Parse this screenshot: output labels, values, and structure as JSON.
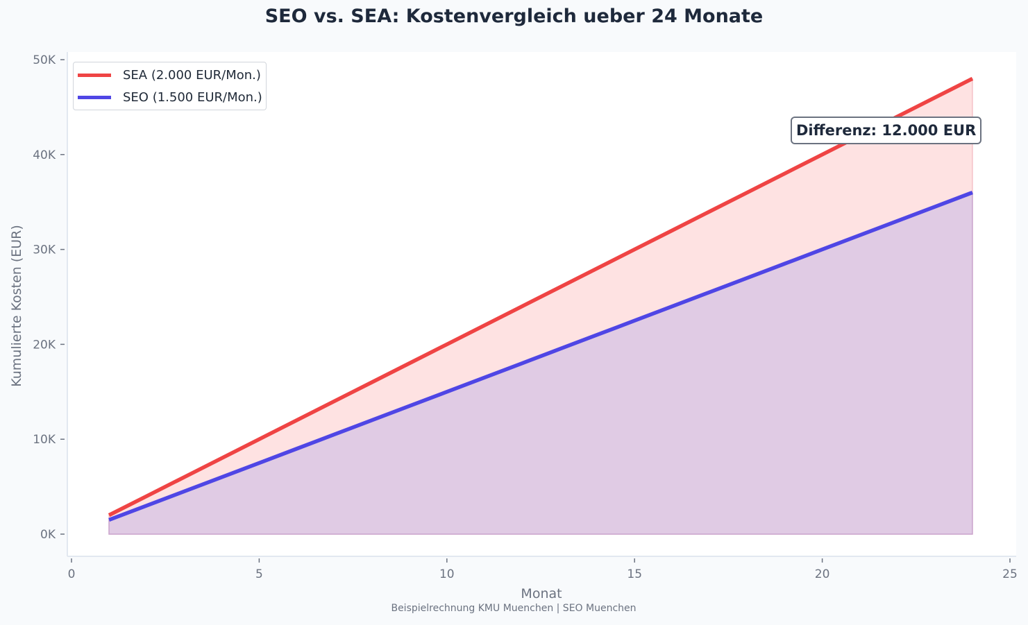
{
  "chart_data": {
    "type": "area",
    "title": "SEO vs. SEA: Kostenvergleich ueber 24 Monate",
    "xlabel": "Monat",
    "ylabel": "Kumulierte Kosten (EUR)",
    "caption": "Beispielrechnung KMU Muenchen | SEO Muenchen",
    "xlim": [
      0,
      25
    ],
    "ylim": [
      -2400,
      50400
    ],
    "x_ticks": [
      0,
      5,
      10,
      15,
      20,
      25
    ],
    "x_tick_labels": [
      "0",
      "5",
      "10",
      "15",
      "20",
      "25"
    ],
    "y_ticks": [
      0,
      10000,
      20000,
      30000,
      40000,
      50000
    ],
    "y_tick_labels": [
      "0K",
      "10K",
      "20K",
      "30K",
      "40K",
      "50K"
    ],
    "grid": false,
    "legend_position": "upper left",
    "x": [
      1,
      2,
      3,
      4,
      5,
      6,
      7,
      8,
      9,
      10,
      11,
      12,
      13,
      14,
      15,
      16,
      17,
      18,
      19,
      20,
      21,
      22,
      23,
      24
    ],
    "series": [
      {
        "name": "SEA (2.000 EUR/Mon.)",
        "color": "#ef4444",
        "fill": "#fee2e2",
        "values": [
          2000,
          4000,
          6000,
          8000,
          10000,
          12000,
          14000,
          16000,
          18000,
          20000,
          22000,
          24000,
          26000,
          28000,
          30000,
          32000,
          34000,
          36000,
          38000,
          40000,
          42000,
          44000,
          46000,
          48000
        ]
      },
      {
        "name": "SEO (1.500 EUR/Mon.)",
        "color": "#4f46e5",
        "fill": "#e0cbe4",
        "values": [
          1500,
          3000,
          4500,
          6000,
          7500,
          9000,
          10500,
          12000,
          13500,
          15000,
          16500,
          18000,
          19500,
          21000,
          22500,
          24000,
          25500,
          27000,
          28500,
          30000,
          31500,
          33000,
          34500,
          36000
        ]
      }
    ],
    "annotations": [
      {
        "text": "Differenz: 12.000 EUR",
        "x": 21.3,
        "y": 43000
      }
    ]
  }
}
